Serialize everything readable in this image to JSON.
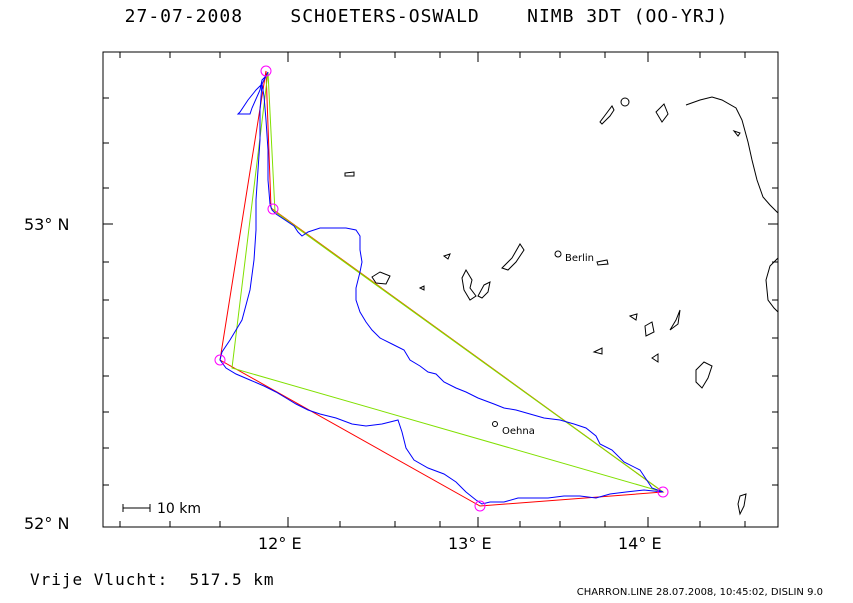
{
  "title": "27-07-2008    SCHOETERS-OSWALD    NIMB 3DT (OO-YRJ)",
  "footer_distance": "Vrije Vlucht:  517.5 km",
  "footer_software": "CHARRON.LINE 28.07.2008, 10:45:02, DISLIN 9.0",
  "scale_bar_label": "10 km",
  "axes": {
    "x_ticks": [
      "12° E",
      "13° E",
      "14° E"
    ],
    "y_ticks": [
      "53° N",
      "52° N"
    ]
  },
  "places": [
    {
      "name": "Berlin"
    },
    {
      "name": "Oehna"
    }
  ],
  "colors": {
    "track": "#0000ff",
    "free_flight": "#ff0000",
    "triangle": "#80e000",
    "orange_leg": "#d08000",
    "turnpoint": "#ff00ff",
    "coastline": "#000000"
  }
}
